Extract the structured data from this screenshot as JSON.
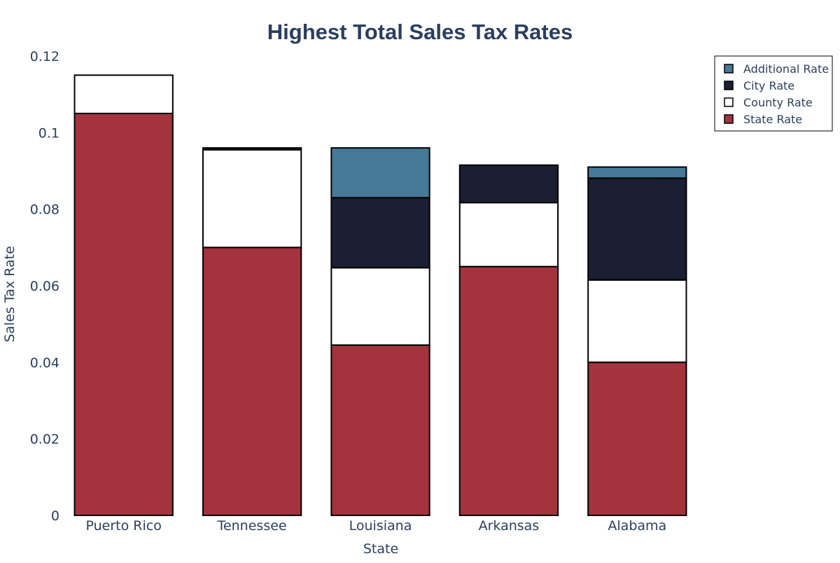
{
  "chart_data": {
    "type": "bar",
    "stacked": true,
    "title": "Highest Total Sales Tax Rates",
    "xlabel": "State",
    "ylabel": "Sales Tax Rate",
    "ylim": [
      0,
      0.12
    ],
    "yticks": [
      "0",
      "0.02",
      "0.04",
      "0.06",
      "0.08",
      "0.1",
      "0.12"
    ],
    "ytick_values": [
      0,
      0.02,
      0.04,
      0.06,
      0.08,
      0.1,
      0.12
    ],
    "grid": false,
    "legend_position": "top-right",
    "categories": [
      "Puerto Rico",
      "Tennessee",
      "Louisiana",
      "Arkansas",
      "Alabama"
    ],
    "series": [
      {
        "name": "State Rate",
        "color": "#a3333d",
        "values": [
          0.105,
          0.07,
          0.0445,
          0.065,
          0.04
        ]
      },
      {
        "name": "County Rate",
        "color": "#ffffff",
        "values": [
          0.01,
          0.0255,
          0.0202,
          0.0167,
          0.0215
        ]
      },
      {
        "name": "City Rate",
        "color": "#1c1f33",
        "values": [
          0,
          0.0005,
          0.0183,
          0.0098,
          0.0266
        ]
      },
      {
        "name": "Additional Rate",
        "color": "#477998",
        "values": [
          0,
          0,
          0.013,
          0,
          0.0029
        ]
      }
    ],
    "legend_order": [
      "Additional Rate",
      "City Rate",
      "County Rate",
      "State Rate"
    ]
  }
}
